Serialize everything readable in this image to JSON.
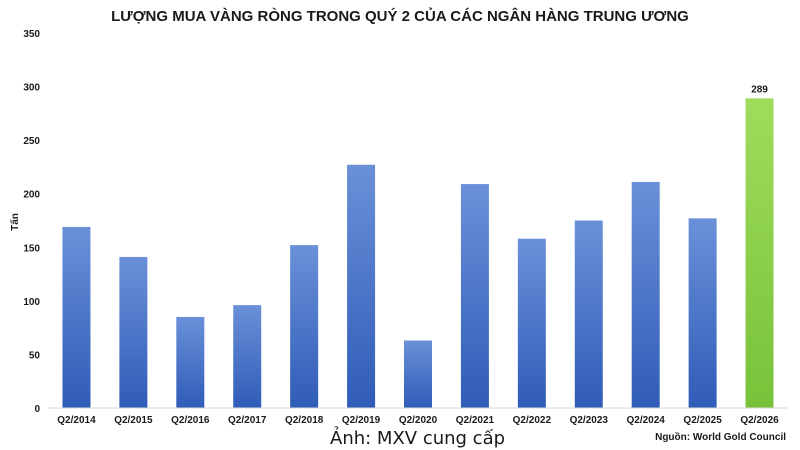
{
  "chart_data": {
    "type": "bar",
    "title": "LƯỢNG MUA VÀNG RÒNG TRONG QUÝ 2 CỦA CÁC NGÂN HÀNG TRUNG ƯƠNG",
    "ylabel": "Tấn",
    "xlabel": "",
    "ylim": [
      0,
      350
    ],
    "yticks": [
      "0",
      "50",
      "100",
      "150",
      "200",
      "250",
      "300",
      "350"
    ],
    "grid": false,
    "categories": [
      "Q2/2014",
      "Q2/2015",
      "Q2/2016",
      "Q2/2017",
      "Q2/2018",
      "Q2/2019",
      "Q2/2020",
      "Q2/2021",
      "Q2/2022",
      "Q2/2023",
      "Q2/2024",
      "Q2/2025",
      "Q2/2026"
    ],
    "values": [
      169,
      141,
      85,
      96,
      152,
      227,
      63,
      209,
      158,
      175,
      211,
      177,
      289
    ],
    "data_labels": [
      "",
      "",
      "",
      "",
      "",
      "",
      "",
      "",
      "",
      "",
      "",
      "",
      "289"
    ],
    "colors": {
      "default_bar": "#4472c4",
      "highlight_bar": "#92d050",
      "highlight_index": 12
    }
  },
  "caption": "Ảnh: MXV cung cấp",
  "source": "Nguồn: World Gold Council"
}
